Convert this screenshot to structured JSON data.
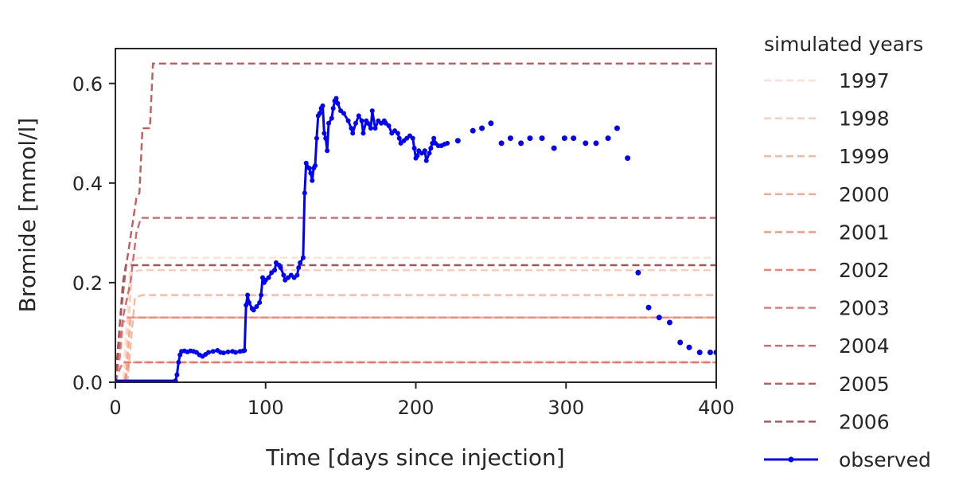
{
  "chart_data": {
    "type": "line",
    "xlabel": "Time [days since injection]",
    "ylabel": "Bromide [mmol/l]",
    "xlim": [
      0,
      400
    ],
    "ylim": [
      0,
      0.67
    ],
    "xticks": [
      0,
      100,
      200,
      300,
      400
    ],
    "xtick_labels": [
      "0",
      "100",
      "200",
      "300",
      "400"
    ],
    "yticks": [
      0.0,
      0.2,
      0.4,
      0.6
    ],
    "ytick_labels": [
      "0.0",
      "0.2",
      "0.4",
      "0.6"
    ],
    "grid": false,
    "legend": {
      "title": "simulated years",
      "placement": "outside-right",
      "observed_label": "observed"
    },
    "simulated_series": [
      {
        "name": "1997",
        "color": "#fde0d2",
        "points": [
          [
            0,
            0
          ],
          [
            5,
            0
          ],
          [
            10,
            0.24
          ],
          [
            15,
            0.25
          ],
          [
            400,
            0.25
          ]
        ]
      },
      {
        "name": "1998",
        "color": "#fcc9b4",
        "points": [
          [
            0,
            0
          ],
          [
            6,
            0
          ],
          [
            11,
            0.22
          ],
          [
            16,
            0.225
          ],
          [
            400,
            0.225
          ]
        ]
      },
      {
        "name": "1999",
        "color": "#fcb69d",
        "points": [
          [
            0,
            0
          ],
          [
            8,
            0
          ],
          [
            13,
            0.17
          ],
          [
            18,
            0.175
          ],
          [
            400,
            0.175
          ]
        ]
      },
      {
        "name": "2000",
        "color": "#fba68a",
        "points": [
          [
            0,
            0
          ],
          [
            7,
            0
          ],
          [
            10,
            0.13
          ],
          [
            14,
            0.13
          ],
          [
            400,
            0.13
          ]
        ]
      },
      {
        "name": "2001",
        "color": "#f7937a",
        "points": [
          [
            0,
            0
          ],
          [
            6,
            0
          ],
          [
            9,
            0.04
          ],
          [
            400,
            0.04
          ]
        ]
      },
      {
        "name": "2002",
        "color": "#f28274",
        "points": [
          [
            0,
            0
          ],
          [
            3,
            0.05
          ],
          [
            5,
            0.12
          ],
          [
            8,
            0.13
          ],
          [
            400,
            0.13
          ]
        ]
      },
      {
        "name": "2003",
        "color": "#e87470",
        "points": [
          [
            0,
            0
          ],
          [
            2,
            0.02
          ],
          [
            5,
            0.04
          ],
          [
            400,
            0.04
          ]
        ]
      },
      {
        "name": "2004",
        "color": "#d96568",
        "points": [
          [
            0,
            0
          ],
          [
            2,
            0.05
          ],
          [
            5,
            0.13
          ],
          [
            10,
            0.2
          ],
          [
            14,
            0.3
          ],
          [
            17,
            0.33
          ],
          [
            400,
            0.33
          ]
        ]
      },
      {
        "name": "2005",
        "color": "#c55a5c",
        "points": [
          [
            0,
            0
          ],
          [
            3,
            0.12
          ],
          [
            7,
            0.23
          ],
          [
            10,
            0.29
          ],
          [
            14,
            0.37
          ],
          [
            16,
            0.38
          ],
          [
            18,
            0.51
          ],
          [
            23,
            0.51
          ],
          [
            25,
            0.64
          ],
          [
            400,
            0.64
          ]
        ]
      },
      {
        "name": "2006",
        "color": "#a85457",
        "points": [
          [
            0,
            0
          ],
          [
            3,
            0.12
          ],
          [
            5,
            0.2
          ],
          [
            7,
            0.235
          ],
          [
            400,
            0.235
          ]
        ]
      }
    ],
    "observed": {
      "name": "observed",
      "color": "#0000ff",
      "connected": [
        [
          0,
          0.003
        ],
        [
          40,
          0.003
        ],
        [
          41,
          0.015
        ],
        [
          42,
          0.04
        ],
        [
          43,
          0.055
        ],
        [
          44,
          0.062
        ],
        [
          46,
          0.063
        ],
        [
          48,
          0.061
        ],
        [
          50,
          0.063
        ],
        [
          52,
          0.062
        ],
        [
          54,
          0.06
        ],
        [
          56,
          0.055
        ],
        [
          58,
          0.052
        ],
        [
          60,
          0.056
        ],
        [
          62,
          0.06
        ],
        [
          65,
          0.062
        ],
        [
          68,
          0.064
        ],
        [
          70,
          0.06
        ],
        [
          72,
          0.059
        ],
        [
          75,
          0.061
        ],
        [
          78,
          0.062
        ],
        [
          80,
          0.06
        ],
        [
          83,
          0.062
        ],
        [
          85,
          0.063
        ],
        [
          86,
          0.064
        ],
        [
          87,
          0.155
        ],
        [
          88,
          0.175
        ],
        [
          89,
          0.16
        ],
        [
          91,
          0.148
        ],
        [
          92,
          0.145
        ],
        [
          94,
          0.152
        ],
        [
          96,
          0.16
        ],
        [
          97,
          0.175
        ],
        [
          98,
          0.21
        ],
        [
          99,
          0.2
        ],
        [
          100,
          0.205
        ],
        [
          102,
          0.21
        ],
        [
          104,
          0.22
        ],
        [
          106,
          0.225
        ],
        [
          107,
          0.24
        ],
        [
          109,
          0.235
        ],
        [
          110,
          0.23
        ],
        [
          112,
          0.215
        ],
        [
          113,
          0.205
        ],
        [
          115,
          0.21
        ],
        [
          117,
          0.215
        ],
        [
          119,
          0.21
        ],
        [
          121,
          0.215
        ],
        [
          122,
          0.23
        ],
        [
          123,
          0.24
        ],
        [
          125,
          0.25
        ],
        [
          126,
          0.38
        ],
        [
          127,
          0.44
        ],
        [
          129,
          0.43
        ],
        [
          130,
          0.42
        ],
        [
          131,
          0.405
        ],
        [
          132,
          0.43
        ],
        [
          133,
          0.435
        ],
        [
          134,
          0.49
        ],
        [
          135,
          0.535
        ],
        [
          136,
          0.54
        ],
        [
          137,
          0.55
        ],
        [
          138,
          0.555
        ],
        [
          139,
          0.5
        ],
        [
          140,
          0.49
        ],
        [
          141,
          0.465
        ],
        [
          142,
          0.52
        ],
        [
          144,
          0.53
        ],
        [
          145,
          0.55
        ],
        [
          146,
          0.565
        ],
        [
          147,
          0.57
        ],
        [
          148,
          0.56
        ],
        [
          150,
          0.545
        ],
        [
          152,
          0.54
        ],
        [
          155,
          0.525
        ],
        [
          157,
          0.51
        ],
        [
          158,
          0.5
        ],
        [
          160,
          0.52
        ],
        [
          162,
          0.535
        ],
        [
          164,
          0.525
        ],
        [
          165,
          0.5
        ],
        [
          167,
          0.525
        ],
        [
          168,
          0.52
        ],
        [
          170,
          0.51
        ],
        [
          171,
          0.545
        ],
        [
          173,
          0.51
        ],
        [
          175,
          0.525
        ],
        [
          177,
          0.52
        ],
        [
          179,
          0.525
        ],
        [
          180,
          0.52
        ],
        [
          182,
          0.515
        ],
        [
          184,
          0.5
        ],
        [
          186,
          0.505
        ],
        [
          188,
          0.5
        ],
        [
          189,
          0.49
        ],
        [
          190,
          0.48
        ],
        [
          192,
          0.485
        ],
        [
          194,
          0.49
        ],
        [
          196,
          0.495
        ],
        [
          198,
          0.49
        ],
        [
          199,
          0.47
        ],
        [
          200,
          0.45
        ],
        [
          201,
          0.455
        ],
        [
          202,
          0.465
        ],
        [
          204,
          0.46
        ],
        [
          206,
          0.465
        ],
        [
          207,
          0.445
        ],
        [
          209,
          0.46
        ],
        [
          210,
          0.47
        ],
        [
          211,
          0.48
        ],
        [
          212,
          0.49
        ],
        [
          213,
          0.48
        ],
        [
          215,
          0.475
        ],
        [
          217,
          0.475
        ],
        [
          219,
          0.478
        ],
        [
          221,
          0.48
        ]
      ],
      "isolated": [
        [
          228,
          0.485
        ],
        [
          238,
          0.505
        ],
        [
          244,
          0.51
        ],
        [
          250,
          0.52
        ],
        [
          257,
          0.48
        ],
        [
          263,
          0.49
        ],
        [
          270,
          0.48
        ],
        [
          276,
          0.49
        ],
        [
          284,
          0.49
        ],
        [
          292,
          0.47
        ],
        [
          299,
          0.49
        ],
        [
          305,
          0.49
        ],
        [
          313,
          0.48
        ],
        [
          320,
          0.48
        ],
        [
          328,
          0.49
        ],
        [
          334,
          0.51
        ],
        [
          341,
          0.45
        ],
        [
          348,
          0.22
        ],
        [
          355,
          0.15
        ],
        [
          362,
          0.13
        ],
        [
          369,
          0.12
        ],
        [
          376,
          0.08
        ],
        [
          382,
          0.07
        ],
        [
          389,
          0.06
        ],
        [
          396,
          0.06
        ],
        [
          400,
          0.06
        ]
      ]
    }
  }
}
